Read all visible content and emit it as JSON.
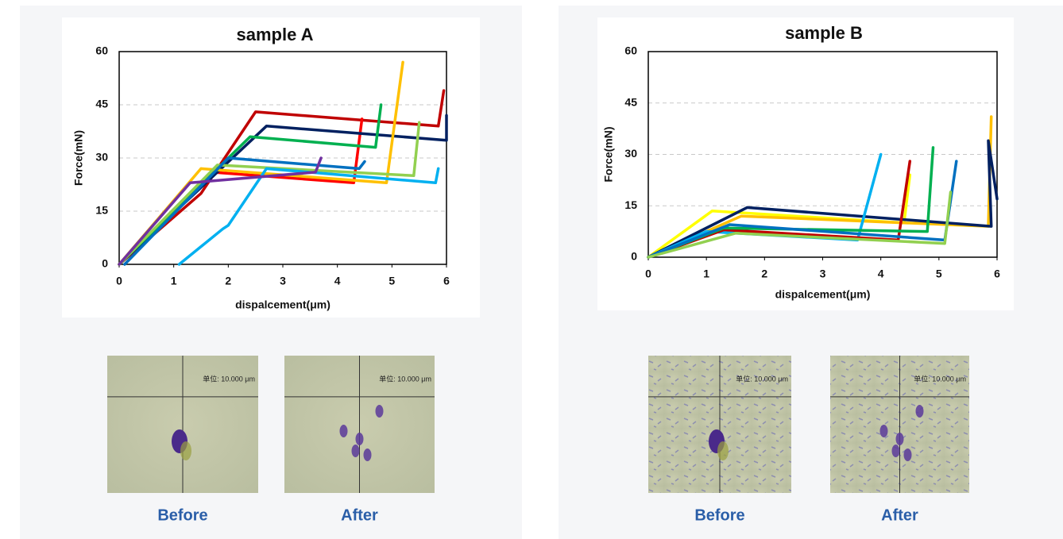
{
  "chart_data": [
    {
      "type": "line",
      "title": "sample A",
      "xlabel": "dispalcement(μm)",
      "ylabel": "Force(mN)",
      "xlim": [
        0,
        6
      ],
      "xticks": [
        0,
        1,
        2,
        3,
        4,
        5,
        6
      ],
      "ylim": [
        0,
        60
      ],
      "yticks": [
        0,
        15,
        30,
        45,
        60
      ],
      "grid": true,
      "series": [
        {
          "color": "#c00000",
          "x": [
            0,
            1.5,
            2.5,
            5.85,
            5.95
          ],
          "values": [
            0,
            20,
            43,
            39,
            49
          ]
        },
        {
          "color": "#ff0000",
          "x": [
            0,
            1.7,
            4.3,
            4.45
          ],
          "values": [
            0,
            26,
            23,
            41
          ]
        },
        {
          "color": "#002060",
          "x": [
            0,
            2.7,
            6,
            6
          ],
          "values": [
            0,
            39,
            35,
            42
          ]
        },
        {
          "color": "#00b050",
          "x": [
            0,
            2.4,
            4.7,
            4.8
          ],
          "values": [
            0,
            36,
            33,
            45
          ]
        },
        {
          "color": "#ffc000",
          "x": [
            0,
            1.5,
            4.9,
            5.2
          ],
          "values": [
            0,
            27,
            23,
            57
          ]
        },
        {
          "color": "#92d050",
          "x": [
            0,
            1.8,
            5.4,
            5.5
          ],
          "values": [
            0,
            28,
            25,
            40
          ]
        },
        {
          "color": "#0070c0",
          "x": [
            0.1,
            2,
            4.4,
            4.5
          ],
          "values": [
            0,
            30,
            27,
            29
          ]
        },
        {
          "color": "#00b0f0",
          "x": [
            1.1,
            1.9,
            2,
            2.7,
            5.8,
            5.85
          ],
          "values": [
            0,
            10,
            11,
            27,
            23,
            27
          ]
        },
        {
          "color": "#7030a0",
          "x": [
            0,
            1.3,
            3.6,
            3.7
          ],
          "values": [
            0,
            23,
            26,
            30
          ]
        }
      ]
    },
    {
      "type": "line",
      "title": "sample B",
      "xlabel": "dispalcement(μm)",
      "ylabel": "Force(mN)",
      "xlim": [
        0,
        6
      ],
      "xticks": [
        0,
        1,
        2,
        3,
        4,
        5,
        6
      ],
      "ylim": [
        0,
        60
      ],
      "yticks": [
        0,
        15,
        30,
        45,
        60
      ],
      "grid": true,
      "series": [
        {
          "color": "#ffff00",
          "x": [
            0,
            1.1,
            4.4,
            4.5
          ],
          "values": [
            0,
            13.5,
            10,
            24
          ]
        },
        {
          "color": "#ffc000",
          "x": [
            0,
            1.6,
            5.85,
            5.9
          ],
          "values": [
            0,
            12,
            9,
            41
          ]
        },
        {
          "color": "#002060",
          "x": [
            0,
            1.7,
            5.9,
            5.85,
            6
          ],
          "values": [
            0,
            14.5,
            9,
            34,
            17
          ]
        },
        {
          "color": "#00b0f0",
          "x": [
            0,
            1,
            3.6,
            4
          ],
          "values": [
            0,
            7.5,
            5,
            30
          ]
        },
        {
          "color": "#c00000",
          "x": [
            0,
            1.3,
            4.3,
            4.5
          ],
          "values": [
            0,
            8,
            5,
            28
          ]
        },
        {
          "color": "#00b050",
          "x": [
            0,
            1.3,
            4.8,
            4.9
          ],
          "values": [
            0,
            8.5,
            7.5,
            32
          ]
        },
        {
          "color": "#0070c0",
          "x": [
            0,
            1.4,
            5.1,
            5.3
          ],
          "values": [
            0,
            9.5,
            5,
            28
          ]
        },
        {
          "color": "#92d050",
          "x": [
            0,
            1.5,
            5.1,
            5.2
          ],
          "values": [
            0,
            7,
            4,
            19
          ]
        }
      ]
    }
  ],
  "panels": [
    {
      "images": [
        {
          "caption": "Before",
          "scale_label": "单位: 10.000 μm"
        },
        {
          "caption": "After",
          "scale_label": "单位: 10.000 μm"
        }
      ]
    },
    {
      "images": [
        {
          "caption": "Before",
          "scale_label": "单位: 10.000 μm"
        },
        {
          "caption": "After",
          "scale_label": "单位: 10.000 μm"
        }
      ]
    }
  ]
}
